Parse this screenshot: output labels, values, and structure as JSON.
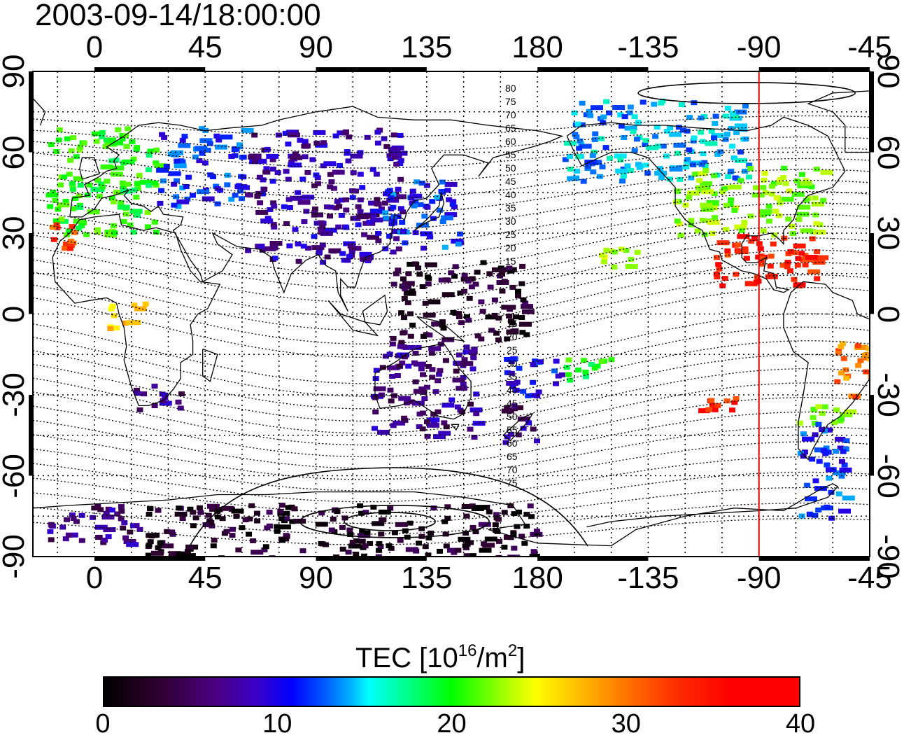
{
  "title": "2003-09-14/18:00:00",
  "axes": {
    "longitude_ticks": [
      "0",
      "45",
      "90",
      "135",
      "180",
      "-135",
      "-90",
      "-45"
    ],
    "latitude_ticks_left": [
      "90",
      "60",
      "30",
      "0",
      "-30",
      "-60",
      "-90"
    ],
    "latitude_ticks_right": [
      "90",
      "60",
      "30",
      "0",
      "-30",
      "-60",
      "-90"
    ]
  },
  "map": {
    "projection": "equirectangular",
    "central_longitude": 135,
    "lon_range": [
      -25,
      315
    ],
    "lat_range": [
      -90,
      90
    ],
    "grid": true,
    "grid_step_deg": 15,
    "marker_line_longitude": -90,
    "marker_line_color": "#e00000",
    "contour_labels_north": [
      "80",
      "75",
      "70",
      "65",
      "60",
      "55",
      "50",
      "45",
      "40",
      "35",
      "30",
      "25",
      "20",
      "15"
    ],
    "contour_labels_south": [
      "15",
      "20",
      "25",
      "30",
      "35",
      "40",
      "45",
      "50",
      "55",
      "60",
      "65",
      "70",
      "75"
    ]
  },
  "colorbar": {
    "label_main": "TEC  [10",
    "label_exp1": "16",
    "label_mid": "/m",
    "label_exp2": "2",
    "label_end": "]",
    "ticks": [
      "0",
      "10",
      "20",
      "30",
      "40"
    ],
    "min": 0,
    "max": 40,
    "colormap_stops": [
      "#000000",
      "#4b0082",
      "#0000ff",
      "#00ffff",
      "#00ff00",
      "#ffff00",
      "#ff7f00",
      "#ff0000"
    ]
  },
  "chart_data": {
    "type": "heatmap",
    "title": "2003-09-14/18:00:00",
    "xlabel": "",
    "ylabel": "",
    "value_unit": "TEC [10^16/m^2]",
    "regions": [
      {
        "lon_range": [
          -20,
          25
        ],
        "lat_range": [
          30,
          70
        ],
        "tec": 21
      },
      {
        "lon_range": [
          -20,
          -8
        ],
        "lat_range": [
          25,
          35
        ],
        "tec": 36
      },
      {
        "lon_range": [
          25,
          60
        ],
        "lat_range": [
          40,
          70
        ],
        "tec": 11
      },
      {
        "lon_range": [
          5,
          20
        ],
        "lat_range": [
          -5,
          5
        ],
        "tec": 30
      },
      {
        "lon_range": [
          15,
          35
        ],
        "lat_range": [
          -35,
          -25
        ],
        "tec": 6
      },
      {
        "lon_range": [
          60,
          125
        ],
        "lat_range": [
          20,
          70
        ],
        "tec": 7
      },
      {
        "lon_range": [
          115,
          148
        ],
        "lat_range": [
          25,
          50
        ],
        "tec": 11
      },
      {
        "lon_range": [
          120,
          175
        ],
        "lat_range": [
          -10,
          20
        ],
        "tec": 2
      },
      {
        "lon_range": [
          112,
          155
        ],
        "lat_range": [
          -45,
          -10
        ],
        "tec": 6
      },
      {
        "lon_range": [
          165,
          180
        ],
        "lat_range": [
          -47,
          -33
        ],
        "tec": 6
      },
      {
        "lon_range": [
          165,
          190
        ],
        "lat_range": [
          -30,
          -15
        ],
        "tec": 10
      },
      {
        "lon_range": [
          -170,
          -150
        ],
        "lat_range": [
          -25,
          -15
        ],
        "tec": 20
      },
      {
        "lon_range": [
          -155,
          -140
        ],
        "lat_range": [
          18,
          25
        ],
        "tec": 25
      },
      {
        "lon_range": [
          -170,
          -95
        ],
        "lat_range": [
          50,
          80
        ],
        "tec": 14
      },
      {
        "lon_range": [
          -125,
          -65
        ],
        "lat_range": [
          30,
          55
        ],
        "tec": 24
      },
      {
        "lon_range": [
          -110,
          -65
        ],
        "lat_range": [
          10,
          30
        ],
        "tec": 38
      },
      {
        "lon_range": [
          -115,
          -100
        ],
        "lat_range": [
          -35,
          -30
        ],
        "tec": 38
      },
      {
        "lon_range": [
          -60,
          -40
        ],
        "lat_range": [
          -30,
          -10
        ],
        "tec": 34
      },
      {
        "lon_range": [
          -75,
          -55
        ],
        "lat_range": [
          -40,
          -30
        ],
        "tec": 24
      },
      {
        "lon_range": [
          -75,
          -55
        ],
        "lat_range": [
          -75,
          -40
        ],
        "tec": 11
      },
      {
        "lon_range": [
          -20,
          20
        ],
        "lat_range": [
          -85,
          -70
        ],
        "tec": 6
      },
      {
        "lon_range": [
          20,
          180
        ],
        "lat_range": [
          -90,
          -70
        ],
        "tec": 2
      }
    ]
  }
}
